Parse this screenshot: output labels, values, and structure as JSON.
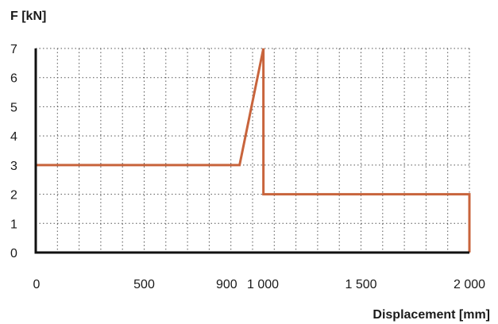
{
  "chart_data": {
    "type": "line",
    "title": "",
    "ylabel": "F [kN]",
    "xlabel": "Displacement [mm]",
    "xlim": [
      0,
      2000
    ],
    "ylim": [
      0,
      7
    ],
    "grid": true,
    "legend": "none",
    "x_grid_step": 100,
    "y_grid_step": 1,
    "x_tick_values": [
      0,
      500,
      900,
      1000,
      1500,
      2000
    ],
    "x_tick_labels": [
      "0",
      "500",
      "900",
      "1 000",
      "1 500",
      "2 000"
    ],
    "y_tick_values": [
      0,
      1,
      2,
      3,
      4,
      5,
      6,
      7
    ],
    "y_tick_labels": [
      "0",
      "1",
      "2",
      "3",
      "4",
      "5",
      "6",
      "7"
    ],
    "series": [
      {
        "color": "#c8643c",
        "x": [
          0,
          940,
          1050,
          1050,
          2000,
          2000
        ],
        "y": [
          3,
          3,
          7,
          2,
          2,
          0
        ]
      }
    ]
  }
}
